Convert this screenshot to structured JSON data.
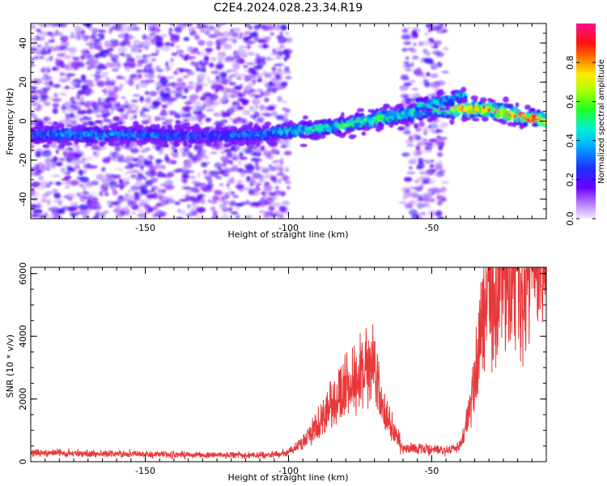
{
  "figure_title": "C2E4.2024.028.23.34.R19",
  "colors": {
    "snr_line": "#e8383a",
    "axis": "#000000",
    "background": "#ffffff"
  },
  "chart_data": [
    {
      "type": "heatmap",
      "title": "C2E4.2024.028.23.34.R19",
      "xlabel": "Height of straight line (km)",
      "ylabel": "Frequency (Hz)",
      "xlim": [
        -190,
        -10
      ],
      "ylim": [
        -50,
        50
      ],
      "xticks": [
        -150,
        -100,
        -50
      ],
      "yticks": [
        -40,
        -20,
        0,
        20,
        40
      ],
      "grid": false,
      "colormap": "hsv-like (violet→blue→cyan→green→yellow→red→magenta)",
      "colorbar": {
        "label": "Normalized spectral amplitude",
        "range": [
          0.0,
          1.0
        ],
        "ticks": [
          "0.0",
          "0.2",
          "0.4",
          "0.6",
          "0.8"
        ],
        "placement": "right"
      },
      "features": [
        {
          "name": "main ridge",
          "x": [
            -190,
            -170,
            -150,
            -130,
            -110,
            -100,
            -90,
            -80,
            -70,
            -60,
            -50,
            -40,
            -30,
            -20,
            -10
          ],
          "y": [
            -7,
            -7,
            -7,
            -8,
            -7,
            -5,
            -4,
            -2,
            1,
            3,
            6,
            6,
            6,
            3,
            0
          ],
          "peak_amplitude": [
            0.35,
            0.4,
            0.35,
            0.3,
            0.35,
            0.45,
            0.55,
            0.55,
            0.6,
            0.55,
            0.5,
            0.9,
            0.95,
            0.9,
            0.95
          ]
        },
        {
          "name": "upper branch",
          "x": [
            -55,
            -45,
            -38
          ],
          "y": [
            8,
            10,
            14
          ],
          "peak_amplitude": [
            0.45,
            0.4,
            0.45
          ]
        },
        {
          "name": "noise band",
          "x_range": [
            -190,
            -100
          ],
          "y_range": [
            -50,
            50
          ],
          "amplitude": 0.1
        },
        {
          "name": "noise column",
          "x_range": [
            -60,
            -45
          ],
          "y_range": [
            -50,
            50
          ],
          "amplitude": 0.1
        }
      ]
    },
    {
      "type": "line",
      "xlabel": "Height of straight line (km)",
      "ylabel": "SNR (10 * v/v)",
      "xlim": [
        -190,
        -10
      ],
      "ylim": [
        0,
        6200
      ],
      "xticks": [
        -150,
        -100,
        -50
      ],
      "yticks": [
        0,
        2000,
        4000,
        6000
      ],
      "grid": false,
      "series": [
        {
          "color": "#e8383a",
          "x": [
            -190,
            -180,
            -170,
            -160,
            -150,
            -140,
            -130,
            -120,
            -110,
            -100,
            -95,
            -90,
            -85,
            -80,
            -75,
            -70,
            -68,
            -65,
            -60,
            -55,
            -50,
            -45,
            -40,
            -38,
            -36,
            -35,
            -33,
            -30,
            -28,
            -25,
            -22,
            -20,
            -18,
            -15,
            -12,
            -10
          ],
          "y": [
            200,
            200,
            180,
            180,
            170,
            160,
            150,
            150,
            140,
            200,
            450,
            800,
            1300,
            1700,
            2000,
            2200,
            1500,
            900,
            300,
            300,
            280,
            250,
            350,
            800,
            1400,
            2000,
            3000,
            3800,
            3300,
            4200,
            3500,
            4800,
            3200,
            5200,
            4500,
            5800
          ]
        }
      ]
    }
  ]
}
